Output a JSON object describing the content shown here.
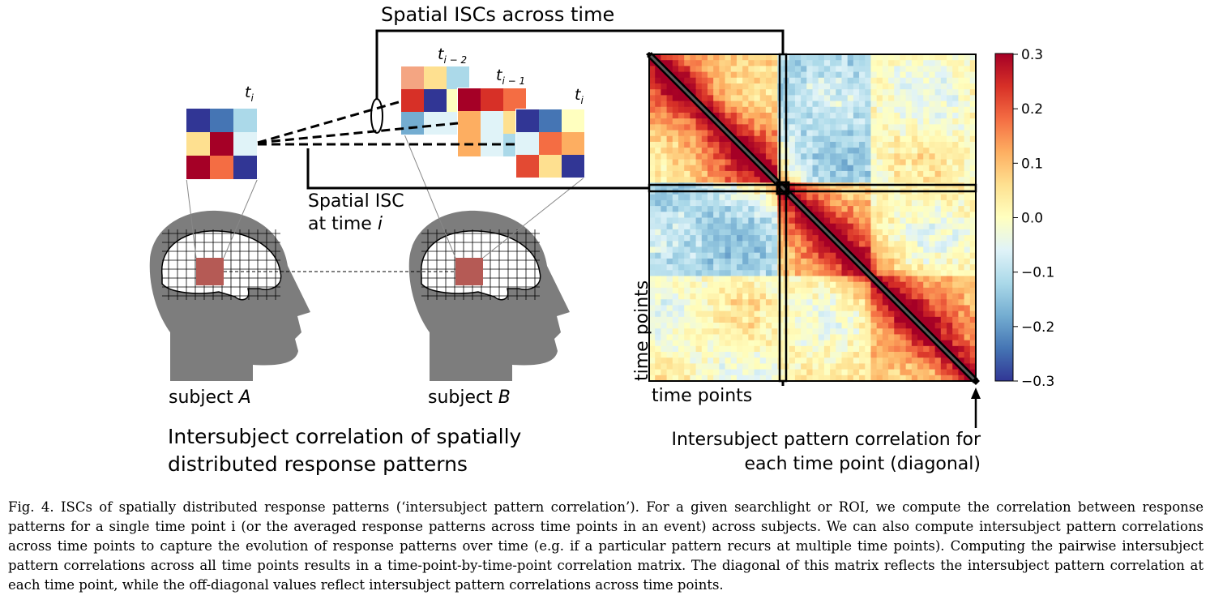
{
  "labels": {
    "top_title": "Spatial ISCs across time",
    "spatial_isc_line1": "Spatial ISC",
    "spatial_isc_line2": "at time ",
    "spatial_isc_var": "i",
    "subject_a_prefix": "subject ",
    "subject_a_var": "A",
    "subject_b_prefix": "subject ",
    "subject_b_var": "B",
    "bottom_left_line1": "Intersubject correlation of spatially",
    "bottom_left_line2": "distributed response patterns",
    "diag_line1": "Intersubject pattern correlation for",
    "diag_line2": "each time point (diagonal)",
    "x_axis": "time points",
    "y_axis": "time points",
    "t_labels": [
      {
        "base": "t",
        "sub": "i"
      },
      {
        "base": "t",
        "sub": "i − 2"
      },
      {
        "base": "t",
        "sub": "i − 1"
      },
      {
        "base": "t",
        "sub": "i"
      }
    ]
  },
  "colorbar": {
    "ticks": [
      "0.3",
      "0.2",
      "0.1",
      "0.0",
      "−0.1",
      "−0.2",
      "−0.3"
    ],
    "colors": [
      "#a50026",
      "#d73027",
      "#f46d43",
      "#fdae61",
      "#fee090",
      "#ffffbf",
      "#e0f3f8",
      "#abd9e9",
      "#74add1",
      "#4575b4",
      "#313695"
    ]
  },
  "patterns": {
    "subject_a_ti": [
      "#313695",
      "#4575b4",
      "#abd9e9",
      "#fee090",
      "#a50026",
      "#e0f3f8",
      "#a50026",
      "#f46d43",
      "#313695"
    ],
    "subject_b_tim2": [
      "#f4a582",
      "#fee090",
      "#abd9e9",
      "#d73027",
      "#313695",
      "#ffffbf",
      "#74add1",
      "#e0f3f8",
      "#e0f3f8"
    ],
    "subject_b_tim1": [
      "#a50026",
      "#d73027",
      "#f46d43",
      "#fdae61",
      "#e0f3f8",
      "#fee090",
      "#fdae61",
      "#e0f3f8",
      "#abd9e9"
    ],
    "subject_b_ti": [
      "#313695",
      "#4575b4",
      "#ffffbf",
      "#e0f3f8",
      "#f46d43",
      "#fdae61",
      "#e34a33",
      "#fee090",
      "#313695"
    ]
  },
  "caption": {
    "fig_label": "Fig. 4.",
    "text": " ISCs of spatially distributed response patterns (‘intersubject pattern correlation’). For a given searchlight or ROI, we compute the correlation between response patterns for a single time point i (or the averaged response patterns across time points in an event) across subjects. We can also compute intersubject pattern correlations across time points to capture the evolution of response patterns over time (e.g. if a particular pattern recurs at multiple time points). Computing the pairwise intersubject pattern correlations across all time points results in a time-point-by-time-point correlation matrix. The diagonal of this matrix reflects the intersubject pattern correlation at each time point, while the off-diagonal values reflect intersubject pattern correlations across time points."
  }
}
